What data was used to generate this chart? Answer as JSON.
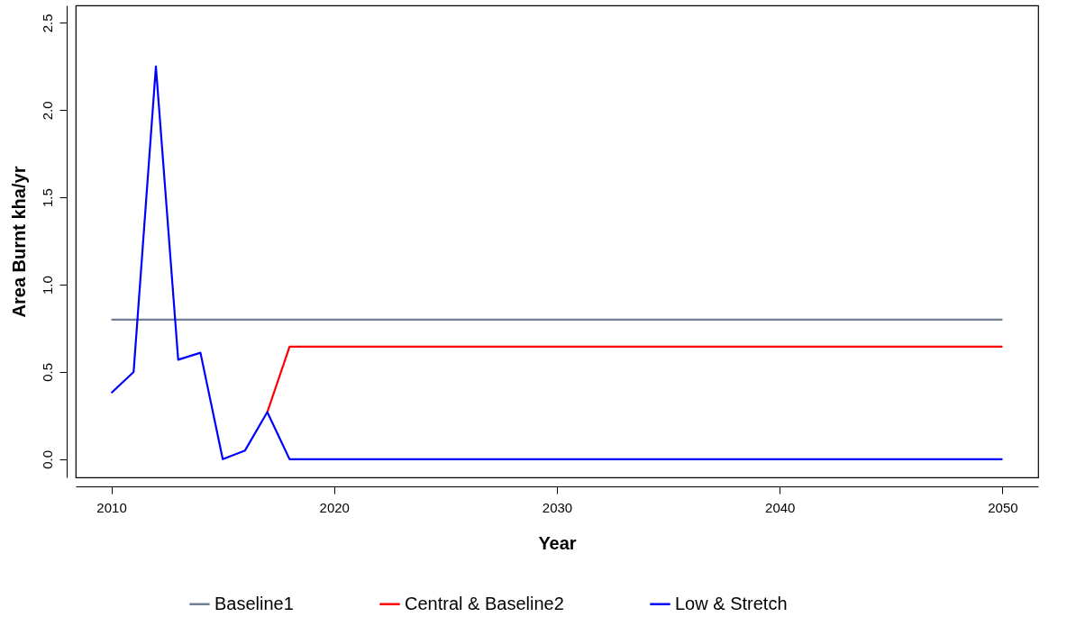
{
  "chart_data": {
    "type": "line",
    "xlabel": "Year",
    "ylabel": "Area Burnt kha/yr",
    "x": [
      2010,
      2011,
      2012,
      2013,
      2014,
      2015,
      2016,
      2017,
      2018,
      2019,
      2020,
      2021,
      2022,
      2023,
      2024,
      2025,
      2026,
      2027,
      2028,
      2029,
      2030,
      2031,
      2032,
      2033,
      2034,
      2035,
      2036,
      2037,
      2038,
      2039,
      2040,
      2041,
      2042,
      2043,
      2044,
      2045,
      2046,
      2047,
      2048,
      2049,
      2050
    ],
    "series": [
      {
        "name": "Baseline1",
        "color": "#708090",
        "values": [
          0.8,
          0.8,
          0.8,
          0.8,
          0.8,
          0.8,
          0.8,
          0.8,
          0.8,
          0.8,
          0.8,
          0.8,
          0.8,
          0.8,
          0.8,
          0.8,
          0.8,
          0.8,
          0.8,
          0.8,
          0.8,
          0.8,
          0.8,
          0.8,
          0.8,
          0.8,
          0.8,
          0.8,
          0.8,
          0.8,
          0.8,
          0.8,
          0.8,
          0.8,
          0.8,
          0.8,
          0.8,
          0.8,
          0.8,
          0.8,
          0.8
        ]
      },
      {
        "name": "Central & Baseline2",
        "color": "#ff0000",
        "values": [
          null,
          null,
          null,
          null,
          null,
          null,
          null,
          0.27,
          0.645,
          0.645,
          0.645,
          0.645,
          0.645,
          0.645,
          0.645,
          0.645,
          0.645,
          0.645,
          0.645,
          0.645,
          0.645,
          0.645,
          0.645,
          0.645,
          0.645,
          0.645,
          0.645,
          0.645,
          0.645,
          0.645,
          0.645,
          0.645,
          0.645,
          0.645,
          0.645,
          0.645,
          0.645,
          0.645,
          0.645,
          0.645,
          0.645
        ]
      },
      {
        "name": "Low & Stretch",
        "color": "#0000ff",
        "values": [
          0.38,
          0.5,
          2.25,
          0.57,
          0.61,
          0,
          0.05,
          0.27,
          0,
          0,
          0,
          0,
          0,
          0,
          0,
          0,
          0,
          0,
          0,
          0,
          0,
          0,
          0,
          0,
          0,
          0,
          0,
          0,
          0,
          0,
          0,
          0,
          0,
          0,
          0,
          0,
          0,
          0,
          0,
          0,
          0
        ]
      }
    ],
    "xlim": [
      2008.4,
      2051.6
    ],
    "xticks": [
      2010,
      2020,
      2030,
      2040,
      2050
    ],
    "ylim": [
      -0.104,
      2.6
    ],
    "yticks": [
      {
        "value": 0,
        "label": "0.0"
      },
      {
        "value": 0.5,
        "label": "0.5"
      },
      {
        "value": 1,
        "label": "1.0"
      },
      {
        "value": 1.5,
        "label": "1.5"
      },
      {
        "value": 2,
        "label": "2.0"
      },
      {
        "value": 2.5,
        "label": "2.5"
      }
    ],
    "legend": "bottom",
    "grid": false
  }
}
